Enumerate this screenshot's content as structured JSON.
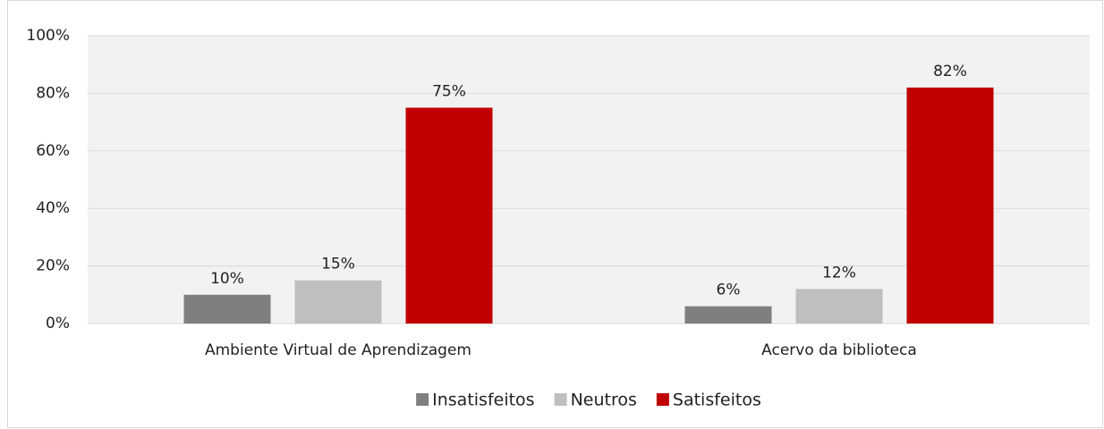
{
  "chart_data": {
    "type": "bar",
    "categories": [
      "Ambiente Virtual de Aprendizagem",
      "Acervo da biblioteca"
    ],
    "series": [
      {
        "name": "Insatisfeitos",
        "color": "#7f7f7f",
        "values": [
          10,
          6
        ],
        "value_labels": [
          "10%",
          "6%"
        ]
      },
      {
        "name": "Neutros",
        "color": "#bfbfbf",
        "values": [
          15,
          12
        ],
        "value_labels": [
          "15%",
          "12%"
        ]
      },
      {
        "name": "Satisfeitos",
        "color": "#c00000",
        "values": [
          75,
          82
        ],
        "value_labels": [
          "75%",
          "82%"
        ]
      }
    ],
    "ylim": [
      0,
      100
    ],
    "yticks": [
      {
        "value": 0,
        "label": "0%"
      },
      {
        "value": 20,
        "label": "20%"
      },
      {
        "value": 40,
        "label": "40%"
      },
      {
        "value": 60,
        "label": "60%"
      },
      {
        "value": 80,
        "label": "80%"
      },
      {
        "value": 100,
        "label": "100%"
      }
    ],
    "grid": true,
    "legend": "bottom"
  }
}
